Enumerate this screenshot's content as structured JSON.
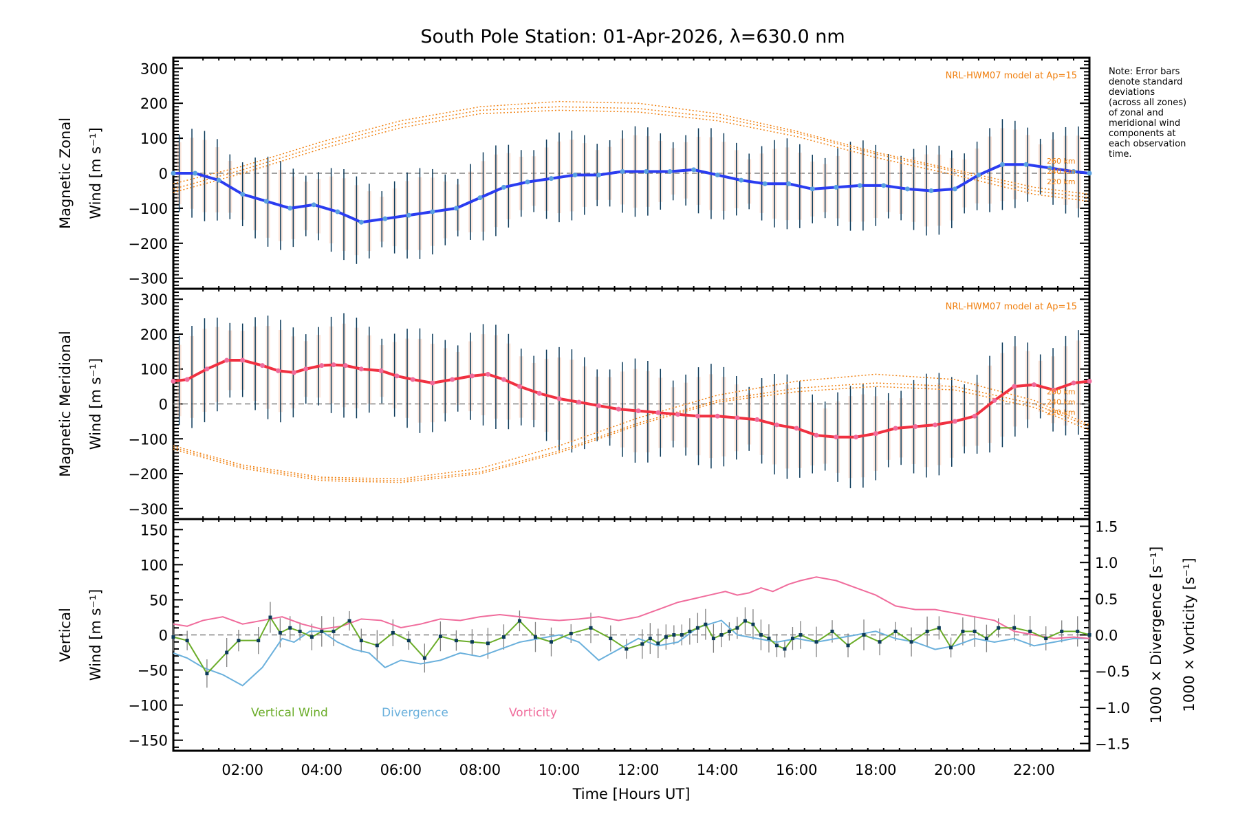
{
  "title": "South Pole Station: 01-Apr-2026, λ=630.0 nm",
  "note": [
    "Note: Error bars",
    "denote standard",
    "deviations",
    "(across all zones)",
    "of zonal and",
    "meridional wind",
    "components at",
    "each observation",
    "time."
  ],
  "colors": {
    "zonal": "#2a3cf0",
    "meridional": "#f03040",
    "model": "#f08010",
    "errorbar": "#0b3a5a",
    "vertical": "#6aac28",
    "divergence": "#6ab0dc",
    "vorticity": "#f06c9c",
    "vpoint": "#0b3a5a",
    "verr": "#808080",
    "zero": "#808080"
  },
  "chart_data": [
    {
      "type": "line",
      "panel": "zonal",
      "ylabel_line1": "Magnetic Zonal",
      "ylabel_line2": "Wind [m s⁻¹]",
      "model_label": "NRL-HWM07 model at Ap=15",
      "model_altitudes": [
        "260 km",
        "240 km",
        "220 km"
      ],
      "xlim": [
        0.25,
        23.4
      ],
      "ylim": [
        -330,
        330
      ],
      "yticks": [
        -300,
        -200,
        -100,
        0,
        100,
        200,
        300
      ],
      "series": [
        {
          "name": "Zonal wind",
          "x": [
            0.25,
            0.8,
            1.4,
            2.0,
            2.6,
            3.2,
            3.8,
            4.4,
            5.0,
            5.6,
            6.2,
            6.8,
            7.4,
            8.0,
            8.6,
            9.2,
            9.8,
            10.4,
            11.0,
            11.6,
            12.2,
            12.8,
            13.4,
            14.0,
            14.6,
            15.2,
            15.8,
            16.4,
            17.0,
            17.6,
            18.2,
            18.8,
            19.4,
            20.0,
            20.6,
            21.2,
            21.8,
            22.4,
            23.0,
            23.4
          ],
          "y": [
            0,
            0,
            -20,
            -60,
            -80,
            -100,
            -90,
            -110,
            -140,
            -130,
            -120,
            -110,
            -100,
            -70,
            -40,
            -25,
            -15,
            -5,
            -5,
            5,
            5,
            5,
            10,
            -5,
            -20,
            -30,
            -30,
            -45,
            -40,
            -35,
            -35,
            -45,
            -50,
            -45,
            -5,
            25,
            25,
            15,
            5,
            0
          ]
        },
        {
          "name": "Model 260 km",
          "x": [
            0.25,
            2,
            4,
            6,
            8,
            10,
            12,
            14,
            16,
            18,
            20,
            22,
            23.4
          ],
          "y": [
            -30,
            20,
            90,
            150,
            190,
            205,
            200,
            170,
            120,
            60,
            10,
            -40,
            -60
          ]
        },
        {
          "name": "Model 240 km",
          "x": [
            0.25,
            2,
            4,
            6,
            8,
            10,
            12,
            14,
            16,
            18,
            20,
            22,
            23.4
          ],
          "y": [
            -45,
            10,
            80,
            140,
            180,
            190,
            185,
            160,
            115,
            55,
            5,
            -50,
            -70
          ]
        },
        {
          "name": "Model 220 km",
          "x": [
            0.25,
            2,
            4,
            6,
            8,
            10,
            12,
            14,
            16,
            18,
            20,
            22,
            23.4
          ],
          "y": [
            -55,
            0,
            70,
            130,
            170,
            180,
            175,
            150,
            105,
            45,
            -5,
            -60,
            -80
          ]
        }
      ],
      "errorbar_std": 130
    },
    {
      "type": "line",
      "panel": "meridional",
      "ylabel_line1": "Magnetic Meridional",
      "ylabel_line2": "Wind [m s⁻¹]",
      "model_label": "NRL-HWM07 model at Ap=15",
      "model_altitudes": [
        "260 km",
        "240 km",
        "220 km"
      ],
      "xlim": [
        0.25,
        23.4
      ],
      "ylim": [
        -330,
        330
      ],
      "yticks": [
        -300,
        -200,
        -100,
        0,
        100,
        200,
        300
      ],
      "series": [
        {
          "name": "Meridional wind",
          "x": [
            0.25,
            0.6,
            1.1,
            1.6,
            2.0,
            2.5,
            2.9,
            3.3,
            3.6,
            4.0,
            4.3,
            4.6,
            5.0,
            5.5,
            5.9,
            6.3,
            6.8,
            7.3,
            7.8,
            8.2,
            8.6,
            9.0,
            9.5,
            10.0,
            10.5,
            11.0,
            11.5,
            12.0,
            12.5,
            13.0,
            13.5,
            14.0,
            14.5,
            15.0,
            15.5,
            16.0,
            16.5,
            17.0,
            17.5,
            18.0,
            18.5,
            19.0,
            19.5,
            20.0,
            20.5,
            21.0,
            21.5,
            22.0,
            22.5,
            23.0,
            23.4
          ],
          "y": [
            65,
            70,
            100,
            125,
            125,
            110,
            95,
            90,
            100,
            110,
            112,
            110,
            100,
            95,
            80,
            70,
            60,
            70,
            80,
            85,
            70,
            50,
            30,
            15,
            5,
            -5,
            -15,
            -20,
            -25,
            -30,
            -35,
            -35,
            -40,
            -45,
            -60,
            -70,
            -90,
            -95,
            -95,
            -85,
            -70,
            -65,
            -60,
            -50,
            -35,
            10,
            50,
            55,
            40,
            60,
            65
          ]
        },
        {
          "name": "Model 260 km",
          "x": [
            0.25,
            2,
            4,
            6,
            8,
            10,
            12,
            14,
            16,
            18,
            20,
            22,
            23.4
          ],
          "y": [
            -120,
            -175,
            -210,
            -215,
            -185,
            -120,
            -40,
            25,
            65,
            85,
            70,
            10,
            -60
          ]
        },
        {
          "name": "Model 240 km",
          "x": [
            0.25,
            2,
            4,
            6,
            8,
            10,
            12,
            14,
            16,
            18,
            20,
            22,
            23.4
          ],
          "y": [
            -125,
            -180,
            -215,
            -220,
            -195,
            -135,
            -55,
            10,
            45,
            60,
            50,
            0,
            -65
          ]
        },
        {
          "name": "Model 220 km",
          "x": [
            0.25,
            2,
            4,
            6,
            8,
            10,
            12,
            14,
            16,
            18,
            20,
            22,
            23.4
          ],
          "y": [
            -130,
            -185,
            -220,
            -225,
            -200,
            -140,
            -60,
            5,
            35,
            50,
            40,
            -10,
            -75
          ]
        }
      ],
      "errorbar_std": 150
    },
    {
      "type": "line",
      "panel": "vertical",
      "ylabel_line1": "Vertical",
      "ylabel_line2": "Wind [m s⁻¹]",
      "y2label_div": "1000 × Divergence [s⁻¹]",
      "y2label_vort": "1000 × Vorticity [s⁻¹]",
      "xlabel": "Time [Hours UT]",
      "xticks": [
        "02:00",
        "04:00",
        "06:00",
        "08:00",
        "10:00",
        "12:00",
        "14:00",
        "16:00",
        "18:00",
        "20:00",
        "22:00"
      ],
      "xtick_values": [
        2,
        4,
        6,
        8,
        10,
        12,
        14,
        16,
        18,
        20,
        22
      ],
      "xlim": [
        0.25,
        23.4
      ],
      "ylim": [
        -165,
        165
      ],
      "yticks": [
        -150,
        -100,
        -50,
        0,
        50,
        100,
        150
      ],
      "y2lim": [
        -1.6,
        1.6
      ],
      "y2ticks": [
        -1.5,
        -1.0,
        -0.5,
        0.0,
        0.5,
        1.0,
        1.5
      ],
      "legend": [
        "Vertical Wind",
        "Divergence",
        "Vorticity"
      ],
      "series": [
        {
          "name": "Vertical Wind",
          "axis": "left",
          "x": [
            0.25,
            0.6,
            1.1,
            1.6,
            1.9,
            2.4,
            2.7,
            2.95,
            3.2,
            3.45,
            3.75,
            4.0,
            4.3,
            4.7,
            5.0,
            5.4,
            5.8,
            6.2,
            6.6,
            7.0,
            7.4,
            7.8,
            8.2,
            8.6,
            9.0,
            9.4,
            9.8,
            10.3,
            10.8,
            11.3,
            11.7,
            12.1,
            12.3,
            12.5,
            12.7,
            12.9,
            13.1,
            13.3,
            13.5,
            13.7,
            13.9,
            14.1,
            14.3,
            14.5,
            14.7,
            14.9,
            15.1,
            15.3,
            15.5,
            15.7,
            15.9,
            16.1,
            16.5,
            16.9,
            17.3,
            17.7,
            18.1,
            18.5,
            18.9,
            19.3,
            19.6,
            19.9,
            20.2,
            20.5,
            20.8,
            21.1,
            21.5,
            21.9,
            22.3,
            22.7,
            23.1,
            23.4
          ],
          "y": [
            -3,
            -8,
            -55,
            -25,
            -8,
            -8,
            25,
            3,
            10,
            5,
            -3,
            5,
            5,
            20,
            -8,
            -15,
            3,
            -8,
            -33,
            -2,
            -8,
            -10,
            -12,
            -3,
            20,
            -3,
            -10,
            2,
            10,
            -5,
            -20,
            -13,
            -5,
            -12,
            -3,
            0,
            0,
            5,
            10,
            15,
            -5,
            0,
            5,
            10,
            20,
            15,
            0,
            -5,
            -15,
            -20,
            -5,
            0,
            -10,
            5,
            -15,
            0,
            -10,
            5,
            -10,
            5,
            10,
            -18,
            5,
            5,
            -5,
            10,
            10,
            5,
            -5,
            5,
            5,
            0
          ]
        },
        {
          "name": "Divergence",
          "axis": "right",
          "x": [
            0.25,
            0.6,
            1.0,
            1.5,
            2.0,
            2.5,
            3.0,
            3.3,
            3.7,
            4.0,
            4.4,
            4.8,
            5.2,
            5.6,
            6.0,
            6.5,
            7.0,
            7.5,
            8.0,
            8.5,
            9.0,
            9.5,
            10.0,
            10.5,
            11.0,
            11.5,
            12.0,
            12.5,
            13.0,
            13.5,
            13.8,
            14.1,
            14.5,
            15.0,
            15.5,
            16.0,
            16.5,
            17.0,
            17.5,
            18.0,
            18.5,
            19.0,
            19.5,
            20.0,
            20.5,
            21.0,
            21.5,
            22.0,
            22.5,
            23.0,
            23.4
          ],
          "y": [
            -0.25,
            -0.32,
            -0.45,
            -0.55,
            -0.7,
            -0.45,
            -0.05,
            -0.1,
            0.05,
            0.05,
            -0.1,
            -0.2,
            -0.25,
            -0.45,
            -0.35,
            -0.4,
            -0.35,
            -0.25,
            -0.3,
            -0.2,
            -0.1,
            -0.05,
            0.0,
            -0.1,
            -0.35,
            -0.2,
            -0.05,
            -0.15,
            -0.1,
            0.1,
            0.15,
            0.2,
            0.0,
            -0.05,
            -0.1,
            -0.05,
            -0.1,
            -0.05,
            0.0,
            0.05,
            -0.05,
            -0.1,
            -0.2,
            -0.15,
            -0.05,
            -0.1,
            -0.05,
            -0.15,
            -0.1,
            -0.05,
            -0.05
          ]
        },
        {
          "name": "Vorticity",
          "axis": "right",
          "x": [
            0.25,
            0.6,
            1.0,
            1.5,
            2.0,
            2.5,
            3.0,
            3.5,
            4.0,
            4.5,
            5.0,
            5.5,
            6.0,
            6.5,
            7.0,
            7.5,
            8.0,
            8.5,
            9.0,
            9.5,
            10.0,
            10.5,
            11.0,
            11.5,
            12.0,
            12.5,
            13.0,
            13.4,
            13.8,
            14.2,
            14.5,
            14.8,
            15.1,
            15.4,
            15.8,
            16.1,
            16.5,
            17.0,
            17.5,
            18.0,
            18.5,
            19.0,
            19.5,
            20.0,
            20.5,
            21.0,
            21.5,
            22.0,
            22.5,
            23.0,
            23.4
          ],
          "y": [
            0.15,
            0.12,
            0.2,
            0.25,
            0.15,
            0.2,
            0.25,
            0.15,
            0.08,
            0.12,
            0.22,
            0.2,
            0.1,
            0.15,
            0.22,
            0.2,
            0.25,
            0.28,
            0.25,
            0.22,
            0.2,
            0.22,
            0.25,
            0.2,
            0.25,
            0.35,
            0.45,
            0.5,
            0.55,
            0.6,
            0.55,
            0.58,
            0.65,
            0.6,
            0.7,
            0.75,
            0.8,
            0.75,
            0.65,
            0.55,
            0.4,
            0.35,
            0.35,
            0.3,
            0.25,
            0.2,
            0.05,
            0.0,
            -0.05,
            -0.03,
            -0.05
          ]
        }
      ],
      "vertical_errorbar": 20
    }
  ]
}
